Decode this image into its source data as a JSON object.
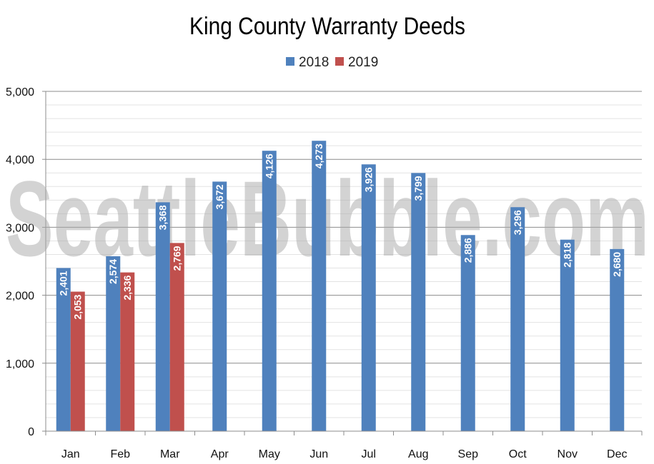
{
  "chart_data": {
    "type": "bar",
    "title": "King County Warranty Deeds",
    "watermark": "SeattleBubble.com",
    "xlabel": "",
    "ylabel": "",
    "ylim": [
      0,
      5000
    ],
    "yticks": [
      "0",
      "1,000",
      "2,000",
      "3,000",
      "4,000",
      "5,000"
    ],
    "ytick_values": [
      0,
      1000,
      2000,
      3000,
      4000,
      5000
    ],
    "grid": true,
    "legend_position": "top-center",
    "categories": [
      "Jan",
      "Feb",
      "Mar",
      "Apr",
      "May",
      "Jun",
      "Jul",
      "Aug",
      "Sep",
      "Oct",
      "Nov",
      "Dec"
    ],
    "series": [
      {
        "name": "2018",
        "color": "#4f81bd",
        "values": [
          2401,
          2574,
          3368,
          3672,
          4126,
          4273,
          3926,
          3799,
          2886,
          3296,
          2818,
          2680
        ],
        "labels": [
          "2,401",
          "2,574",
          "3,368",
          "3,672",
          "4,126",
          "4,273",
          "3,926",
          "3,799",
          "2,886",
          "3,296",
          "2,818",
          "2,680"
        ]
      },
      {
        "name": "2019",
        "color": "#c0504d",
        "values": [
          2053,
          2336,
          2769,
          null,
          null,
          null,
          null,
          null,
          null,
          null,
          null,
          null
        ],
        "labels": [
          "2,053",
          "2,336",
          "2,769",
          null,
          null,
          null,
          null,
          null,
          null,
          null,
          null,
          null
        ]
      }
    ]
  }
}
